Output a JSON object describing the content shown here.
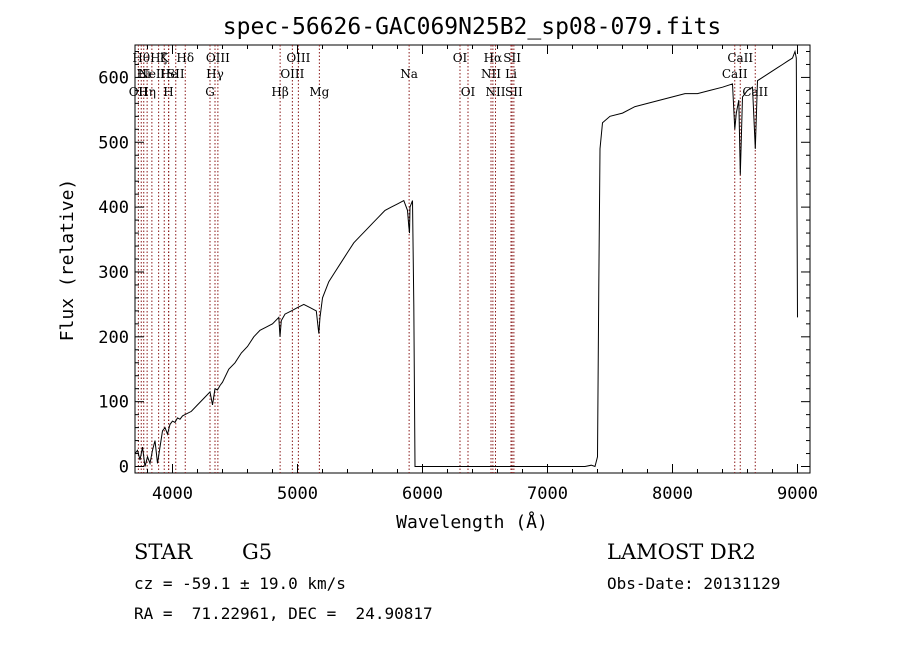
{
  "chart_data": {
    "type": "line",
    "title": "spec-56626-GAC069N25B2_sp08-079.fits",
    "xlabel": "Wavelength (Å)",
    "ylabel": "Flux (relative)",
    "xlim": [
      3700,
      9100
    ],
    "ylim": [
      -10,
      650
    ],
    "xticks": [
      4000,
      5000,
      6000,
      7000,
      8000,
      9000
    ],
    "yticks": [
      0,
      100,
      200,
      300,
      400,
      500,
      600
    ],
    "line_color": "#000000",
    "marker_color": "#8b1a1a",
    "series": [
      {
        "x": [
          3700,
          3720,
          3740,
          3760,
          3780,
          3800,
          3820,
          3840,
          3860,
          3880,
          3900,
          3920,
          3940,
          3960,
          3980,
          4000,
          4020,
          4040,
          4060,
          4080,
          4100,
          4150,
          4200,
          4250,
          4300,
          4320,
          4340,
          4360,
          4380,
          4400,
          4450,
          4500,
          4550,
          4600,
          4650,
          4700,
          4750,
          4800,
          4850,
          4860,
          4870,
          4900,
          4950,
          5000,
          5050,
          5100,
          5150,
          5170,
          5180,
          5200,
          5250,
          5300,
          5350,
          5400,
          5450,
          5500,
          5550,
          5600,
          5650,
          5700,
          5750,
          5800,
          5850,
          5880,
          5890,
          5896,
          5900,
          5920,
          5930,
          5940,
          6000,
          6100,
          6200,
          6300,
          6400,
          6500,
          6600,
          6700,
          6800,
          6900,
          7000,
          7100,
          7200,
          7250,
          7300,
          7350,
          7380,
          7400,
          7410,
          7420,
          7440,
          7500,
          7600,
          7700,
          7800,
          7900,
          8000,
          8100,
          8200,
          8300,
          8400,
          8480,
          8498,
          8510,
          8530,
          8542,
          8560,
          8600,
          8640,
          8662,
          8680,
          8720,
          8760,
          8800,
          8840,
          8880,
          8920,
          8960,
          8980,
          8990,
          9000
        ],
        "y": [
          20,
          25,
          10,
          30,
          0,
          15,
          5,
          25,
          40,
          5,
          30,
          55,
          60,
          50,
          65,
          70,
          68,
          75,
          73,
          78,
          80,
          85,
          95,
          105,
          115,
          95,
          120,
          118,
          125,
          130,
          150,
          160,
          175,
          185,
          200,
          210,
          215,
          220,
          230,
          200,
          225,
          235,
          240,
          245,
          250,
          245,
          240,
          205,
          230,
          260,
          285,
          300,
          315,
          330,
          345,
          355,
          365,
          375,
          385,
          395,
          400,
          405,
          410,
          395,
          370,
          360,
          400,
          410,
          250,
          0,
          0,
          0,
          0,
          0,
          0,
          0,
          0,
          0,
          0,
          0,
          0,
          0,
          0,
          0,
          0,
          2,
          0,
          15,
          280,
          490,
          530,
          540,
          545,
          555,
          560,
          565,
          570,
          575,
          575,
          580,
          585,
          590,
          520,
          545,
          565,
          450,
          570,
          580,
          585,
          490,
          595,
          600,
          605,
          610,
          615,
          620,
          625,
          630,
          640,
          630,
          230
        ]
      }
    ],
    "lines": [
      {
        "x": 3727,
        "labels": [
          "OII"
        ],
        "tier": 3
      },
      {
        "x": 3750,
        "labels": [
          "Hθ"
        ],
        "tier": 1
      },
      {
        "x": 3770,
        "labels": [
          "Hi"
        ],
        "tier": 2
      },
      {
        "x": 3797,
        "labels": [
          "Hη"
        ],
        "tier": 3
      },
      {
        "x": 3835,
        "labels": [
          "NeII"
        ],
        "tier": 2
      },
      {
        "x": 3889,
        "labels": [
          "Hζ"
        ],
        "tier": 1
      },
      {
        "x": 3934,
        "labels": [
          "K"
        ],
        "tier": 1
      },
      {
        "x": 3968,
        "labels": [
          "H"
        ],
        "tier": 3
      },
      {
        "x": 3970,
        "labels": [
          "He"
        ],
        "tier": 2
      },
      {
        "x": 4026,
        "labels": [
          "SII"
        ],
        "tier": 2
      },
      {
        "x": 4102,
        "labels": [
          "Hδ"
        ],
        "tier": 1
      },
      {
        "x": 4300,
        "labels": [
          "G"
        ],
        "tier": 3
      },
      {
        "x": 4340,
        "labels": [
          "Hγ"
        ],
        "tier": 2
      },
      {
        "x": 4363,
        "labels": [
          "OIII"
        ],
        "tier": 1
      },
      {
        "x": 4861,
        "labels": [
          "Hβ"
        ],
        "tier": 3
      },
      {
        "x": 4959,
        "labels": [
          "OIII"
        ],
        "tier": 2
      },
      {
        "x": 5007,
        "labels": [
          "OIII"
        ],
        "tier": 1
      },
      {
        "x": 5175,
        "labels": [
          "Mg"
        ],
        "tier": 3
      },
      {
        "x": 5893,
        "labels": [
          "Na"
        ],
        "tier": 2
      },
      {
        "x": 6300,
        "labels": [
          "OI"
        ],
        "tier": 1
      },
      {
        "x": 6364,
        "labels": [
          "OI"
        ],
        "tier": 3
      },
      {
        "x": 6548,
        "labels": [
          "NII"
        ],
        "tier": 2
      },
      {
        "x": 6563,
        "labels": [
          "Hα"
        ],
        "tier": 1
      },
      {
        "x": 6584,
        "labels": [
          "NII"
        ],
        "tier": 3
      },
      {
        "x": 6708,
        "labels": [
          "Li"
        ],
        "tier": 2
      },
      {
        "x": 6717,
        "labels": [
          "SII"
        ],
        "tier": 1
      },
      {
        "x": 6731,
        "labels": [
          "SII"
        ],
        "tier": 3
      },
      {
        "x": 8498,
        "labels": [
          "CaII"
        ],
        "tier": 2
      },
      {
        "x": 8542,
        "labels": [
          "CaII"
        ],
        "tier": 1
      },
      {
        "x": 8662,
        "labels": [
          "CaII"
        ],
        "tier": 3
      }
    ]
  },
  "info": {
    "class_label": "STAR",
    "subclass_label": "G5",
    "survey_label": "LAMOST DR2",
    "redshift_label": "cz = -59.1 ± 19.0 km/s",
    "obsdate_label": "Obs-Date: 20131129",
    "coords_label": "RA =  71.22961, DEC =  24.90817"
  }
}
